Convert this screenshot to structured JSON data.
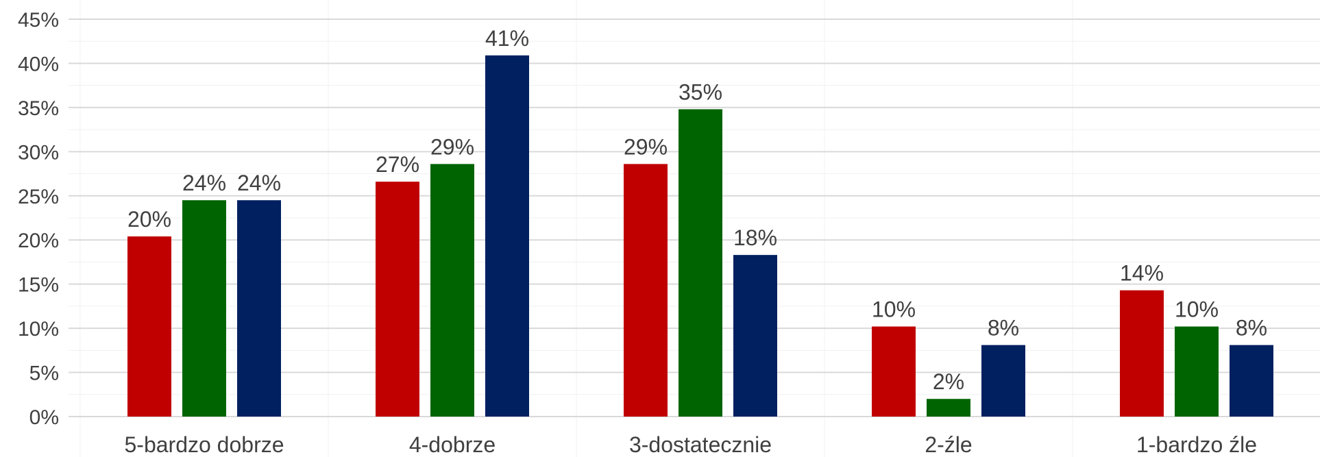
{
  "chart_data": {
    "type": "bar",
    "title": "",
    "xlabel": "",
    "ylabel": "",
    "categories": [
      "5-bardzo dobrze",
      "4-dobrze",
      "3-dostatecznie",
      "2-źle",
      "1-bardzo źle"
    ],
    "series": [
      {
        "color": "#c00000",
        "values": [
          20.4,
          26.6,
          28.6,
          10.2,
          14.3
        ]
      },
      {
        "color": "#006400",
        "values": [
          24.5,
          28.6,
          34.8,
          2.0,
          10.2
        ]
      },
      {
        "color": "#002060",
        "values": [
          24.5,
          40.9,
          18.3,
          8.1,
          8.1
        ]
      }
    ],
    "data_labels": [
      [
        "20%",
        "27%",
        "29%",
        "10%",
        "14%"
      ],
      [
        "24%",
        "29%",
        "35%",
        "2%",
        "10%"
      ],
      [
        "24%",
        "41%",
        "18%",
        "8%",
        "8%"
      ]
    ],
    "y_ticks": [
      "0%",
      "5%",
      "10%",
      "15%",
      "20%",
      "25%",
      "30%",
      "35%",
      "40%",
      "45%"
    ],
    "ylim": [
      0,
      45
    ],
    "grid": true,
    "legend": "none"
  }
}
